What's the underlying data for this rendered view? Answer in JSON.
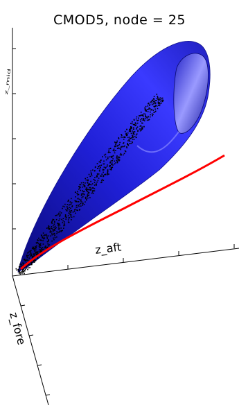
{
  "chart_data": {
    "type": "scatter",
    "projection": "3d",
    "title": "CMOD5, node = 25",
    "axes": {
      "x_label": "z_aft",
      "y_label": "z_fore",
      "z_label": "z_mid"
    },
    "colors": {
      "surface": "#1a1acc",
      "surface_highlight": "#8a8aff",
      "curve": "#ff0000",
      "points": "#000000",
      "axes": "#000000"
    },
    "series": []
  }
}
